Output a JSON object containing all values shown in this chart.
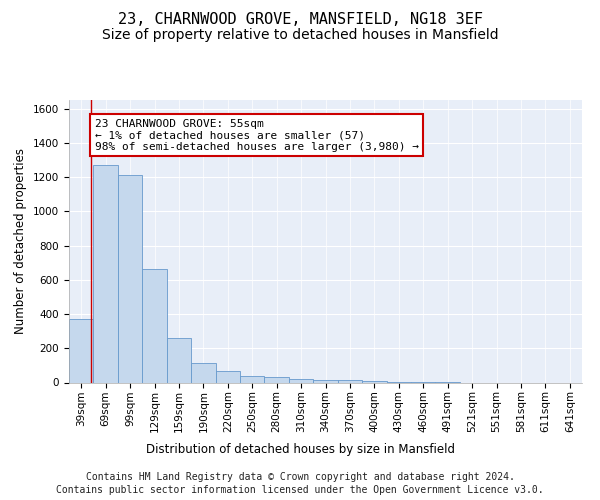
{
  "title_line1": "23, CHARNWOOD GROVE, MANSFIELD, NG18 3EF",
  "title_line2": "Size of property relative to detached houses in Mansfield",
  "xlabel": "Distribution of detached houses by size in Mansfield",
  "ylabel": "Number of detached properties",
  "categories": [
    "39sqm",
    "69sqm",
    "99sqm",
    "129sqm",
    "159sqm",
    "190sqm",
    "220sqm",
    "250sqm",
    "280sqm",
    "310sqm",
    "340sqm",
    "370sqm",
    "400sqm",
    "430sqm",
    "460sqm",
    "491sqm",
    "521sqm",
    "551sqm",
    "581sqm",
    "611sqm",
    "641sqm"
  ],
  "values": [
    370,
    1270,
    1210,
    665,
    260,
    113,
    65,
    38,
    30,
    22,
    15,
    15,
    8,
    5,
    3,
    2,
    0,
    0,
    0,
    0,
    0
  ],
  "bar_color": "#c5d8ed",
  "bar_edge_color": "#6699cc",
  "background_color": "#e8eef8",
  "grid_color": "#ffffff",
  "annotation_box_color": "#cc0000",
  "annotation_text": "23 CHARNWOOD GROVE: 55sqm\n← 1% of detached houses are smaller (57)\n98% of semi-detached houses are larger (3,980) →",
  "property_line_x": 0.42,
  "ylim": [
    0,
    1650
  ],
  "yticks": [
    0,
    200,
    400,
    600,
    800,
    1000,
    1200,
    1400,
    1600
  ],
  "footer_line1": "Contains HM Land Registry data © Crown copyright and database right 2024.",
  "footer_line2": "Contains public sector information licensed under the Open Government Licence v3.0.",
  "title_fontsize": 11,
  "subtitle_fontsize": 10,
  "label_fontsize": 8.5,
  "tick_fontsize": 7.5,
  "annotation_fontsize": 8,
  "footer_fontsize": 7
}
